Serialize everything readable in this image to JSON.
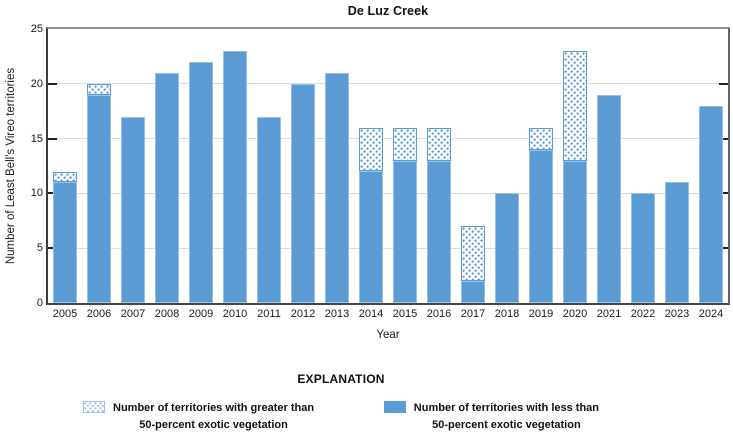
{
  "chart_data": {
    "type": "bar",
    "stacked": true,
    "title": "De Luz Creek",
    "xlabel": "Year",
    "ylabel": "Number of Least Bell's Vireo territories",
    "ylim": [
      0,
      25
    ],
    "yticks": [
      0,
      5,
      10,
      15,
      20,
      25
    ],
    "grid": "horizontal",
    "categories": [
      "2005",
      "2006",
      "2007",
      "2008",
      "2009",
      "2010",
      "2011",
      "2012",
      "2013",
      "2014",
      "2015",
      "2016",
      "2017",
      "2018",
      "2019",
      "2020",
      "2021",
      "2022",
      "2023",
      "2024"
    ],
    "series": [
      {
        "name": "Number of territories with less than 50-percent exotic vegetation",
        "style": "solid",
        "color": "#5b9bd5",
        "values": [
          11,
          19,
          17,
          21,
          22,
          23,
          17,
          20,
          21,
          12,
          13,
          13,
          2,
          10,
          14,
          13,
          19,
          10,
          11,
          18
        ]
      },
      {
        "name": "Number of territories with greater than 50-percent exotic vegetation",
        "style": "dotted",
        "color": "#5b9bd5",
        "values": [
          1,
          1,
          0,
          0,
          0,
          0,
          0,
          0,
          0,
          4,
          3,
          3,
          5,
          0,
          2,
          10,
          0,
          0,
          0,
          0
        ]
      }
    ],
    "legend": {
      "header": "EXPLANATION",
      "position": "bottom",
      "entries": [
        {
          "swatch": "dotted",
          "line1": "Number of territories with greater than",
          "line2": "50-percent exotic vegetation"
        },
        {
          "swatch": "solid",
          "line1": "Number of territories with less than",
          "line2": "50-percent exotic vegetation"
        }
      ]
    }
  }
}
